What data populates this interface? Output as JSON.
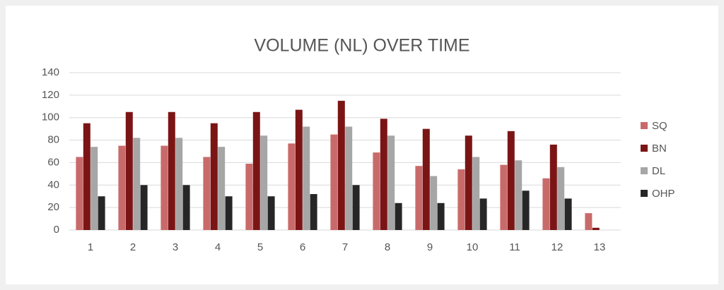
{
  "chart_data": {
    "type": "bar",
    "title": "VOLUME (NL) OVER TIME",
    "categories": [
      "1",
      "2",
      "3",
      "4",
      "5",
      "6",
      "7",
      "8",
      "9",
      "10",
      "11",
      "12",
      "13"
    ],
    "series": [
      {
        "name": "SQ",
        "color": "#c96a6a",
        "values": [
          65,
          75,
          75,
          65,
          59,
          77,
          85,
          69,
          57,
          54,
          58,
          46,
          15
        ]
      },
      {
        "name": "BN",
        "color": "#7b1515",
        "values": [
          95,
          105,
          105,
          95,
          105,
          107,
          115,
          99,
          90,
          84,
          88,
          76,
          2
        ]
      },
      {
        "name": "DL",
        "color": "#a6a6a6",
        "values": [
          74,
          82,
          82,
          74,
          84,
          92,
          92,
          84,
          48,
          65,
          62,
          56,
          null
        ]
      },
      {
        "name": "OHP",
        "color": "#262626",
        "values": [
          30,
          40,
          40,
          30,
          30,
          32,
          40,
          24,
          24,
          28,
          35,
          28,
          null
        ]
      }
    ],
    "ylim": [
      0,
      140
    ],
    "yticks": [
      0,
      20,
      40,
      60,
      80,
      100,
      120,
      140
    ],
    "grid": true,
    "legend": "right"
  }
}
